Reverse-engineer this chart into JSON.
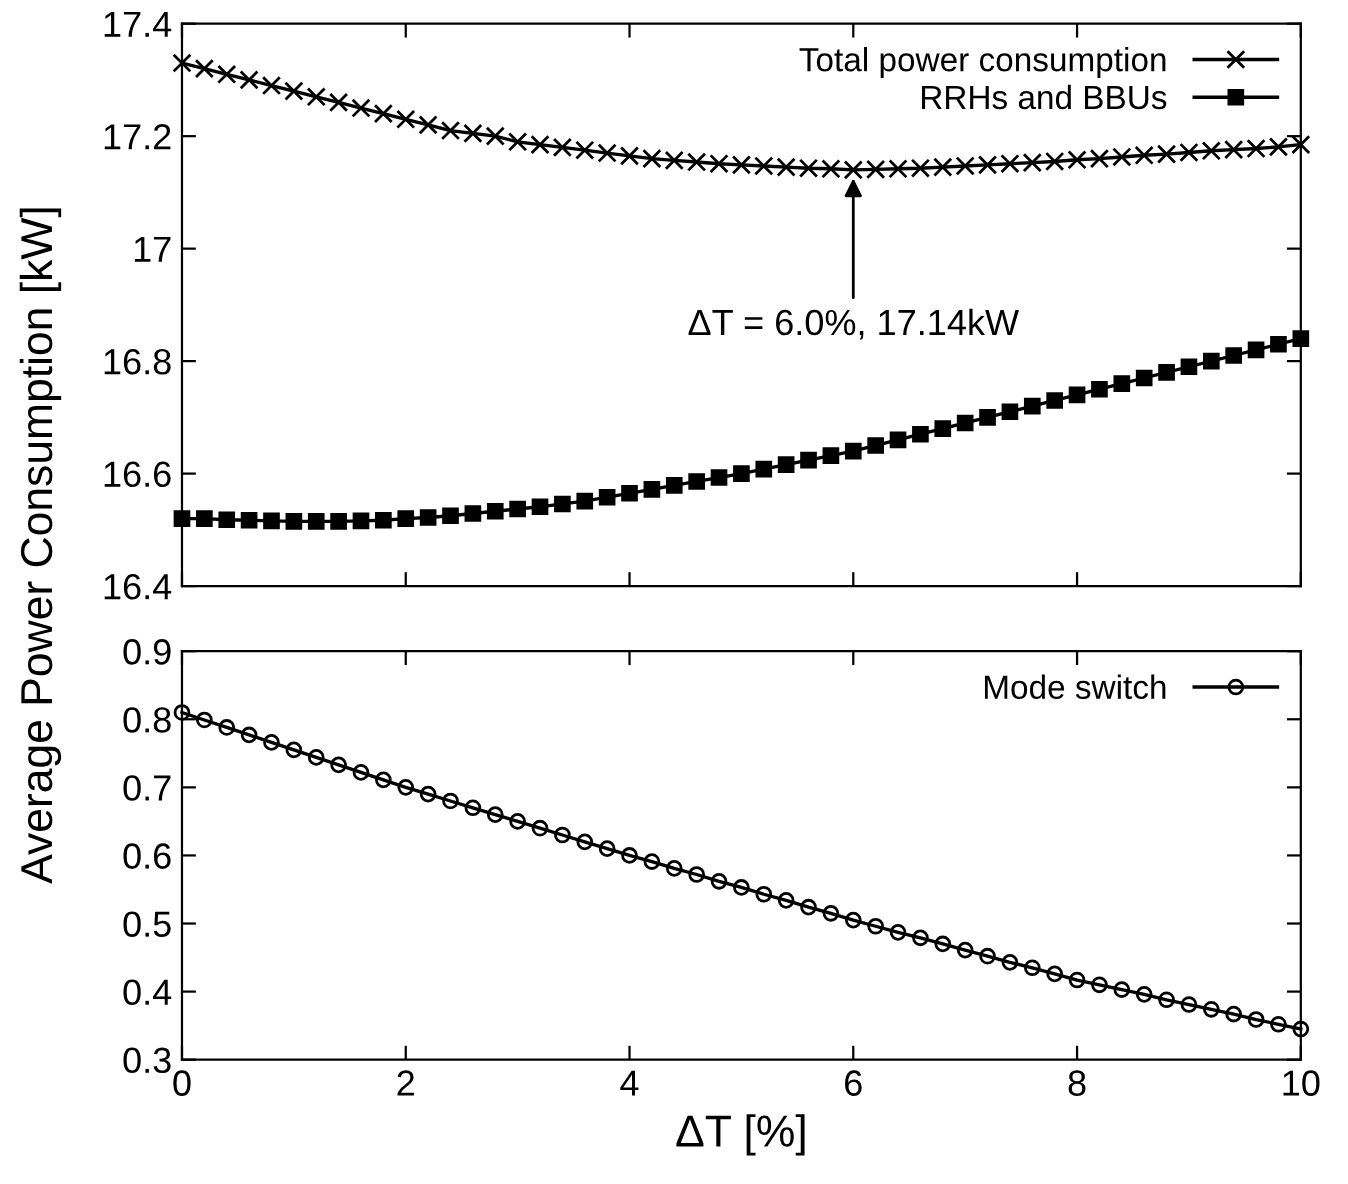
{
  "chart_data": [
    {
      "type": "line",
      "ylabel": "Average Power Consumption [kW]",
      "x": [
        0,
        0.2,
        0.4,
        0.6,
        0.8,
        1,
        1.2,
        1.4,
        1.6,
        1.8,
        2,
        2.2,
        2.4,
        2.6,
        2.8,
        3,
        3.2,
        3.4,
        3.6,
        3.8,
        4,
        4.2,
        4.4,
        4.6,
        4.8,
        5,
        5.2,
        5.4,
        5.6,
        5.8,
        6,
        6.2,
        6.4,
        6.6,
        6.8,
        7,
        7.2,
        7.4,
        7.6,
        7.8,
        8,
        8.2,
        8.4,
        8.6,
        8.8,
        9,
        9.2,
        9.4,
        9.6,
        9.8,
        10
      ],
      "series": [
        {
          "name": "Total power consumption",
          "color": "#000000",
          "marker": "cross",
          "values": [
            17.33,
            17.32,
            17.31,
            17.3,
            17.29,
            17.28,
            17.27,
            17.26,
            17.25,
            17.24,
            17.23,
            17.22,
            17.21,
            17.205,
            17.2,
            17.19,
            17.185,
            17.18,
            17.175,
            17.17,
            17.165,
            17.16,
            17.157,
            17.154,
            17.151,
            17.149,
            17.147,
            17.145,
            17.143,
            17.142,
            17.14,
            17.141,
            17.142,
            17.143,
            17.145,
            17.147,
            17.149,
            17.151,
            17.153,
            17.155,
            17.158,
            17.16,
            17.163,
            17.166,
            17.168,
            17.171,
            17.174,
            17.176,
            17.178,
            17.181,
            17.185
          ]
        },
        {
          "name": "RRHs and BBUs",
          "color": "#000000",
          "marker": "square",
          "values": [
            16.52,
            16.52,
            16.518,
            16.517,
            16.516,
            16.515,
            16.515,
            16.515,
            16.516,
            16.517,
            16.52,
            16.522,
            16.525,
            16.529,
            16.533,
            16.537,
            16.541,
            16.546,
            16.551,
            16.558,
            16.565,
            16.572,
            16.579,
            16.586,
            16.593,
            16.6,
            16.608,
            16.616,
            16.624,
            16.632,
            16.64,
            16.65,
            16.66,
            16.67,
            16.68,
            16.69,
            16.7,
            16.71,
            16.72,
            16.73,
            16.74,
            16.75,
            16.76,
            16.77,
            16.78,
            16.79,
            16.8,
            16.81,
            16.82,
            16.83,
            16.84
          ]
        }
      ],
      "annotations": [
        {
          "text": "ΔT = 6.0%, 17.14kW",
          "x": 6,
          "y": 17.14
        }
      ],
      "xlim": [
        0,
        10
      ],
      "xticks": [
        0,
        2,
        4,
        6,
        8,
        10
      ],
      "ylim": [
        16.4,
        17.4
      ],
      "yticks": [
        16.4,
        16.6,
        16.8,
        17,
        17.2,
        17.4
      ],
      "tick_labels": "y",
      "legend": "top right",
      "grid": false,
      "line_style": "solid"
    },
    {
      "type": "line",
      "xlabel": "ΔT [%]",
      "x": [
        0,
        0.2,
        0.4,
        0.6,
        0.8,
        1,
        1.2,
        1.4,
        1.6,
        1.8,
        2,
        2.2,
        2.4,
        2.6,
        2.8,
        3,
        3.2,
        3.4,
        3.6,
        3.8,
        4,
        4.2,
        4.4,
        4.6,
        4.8,
        5,
        5.2,
        5.4,
        5.6,
        5.8,
        6,
        6.2,
        6.4,
        6.6,
        6.8,
        7,
        7.2,
        7.4,
        7.6,
        7.8,
        8,
        8.2,
        8.4,
        8.6,
        8.8,
        9,
        9.2,
        9.4,
        9.6,
        9.8,
        10
      ],
      "series": [
        {
          "name": "Mode switch",
          "color": "#000000",
          "marker": "circle",
          "values": [
            0.81,
            0.799,
            0.788,
            0.777,
            0.766,
            0.755,
            0.744,
            0.733,
            0.722,
            0.711,
            0.7,
            0.69,
            0.68,
            0.67,
            0.66,
            0.65,
            0.64,
            0.63,
            0.62,
            0.61,
            0.6,
            0.591,
            0.581,
            0.572,
            0.562,
            0.553,
            0.543,
            0.534,
            0.524,
            0.515,
            0.505,
            0.496,
            0.487,
            0.479,
            0.47,
            0.461,
            0.452,
            0.443,
            0.435,
            0.426,
            0.417,
            0.41,
            0.403,
            0.396,
            0.388,
            0.381,
            0.374,
            0.367,
            0.359,
            0.352,
            0.345
          ]
        }
      ],
      "xlim": [
        0,
        10
      ],
      "xticks": [
        0,
        2,
        4,
        6,
        8,
        10
      ],
      "ylim": [
        0.3,
        0.9
      ],
      "yticks": [
        0.3,
        0.4,
        0.5,
        0.6,
        0.7,
        0.8,
        0.9
      ],
      "legend": "top right",
      "grid": false,
      "line_style": "solid"
    }
  ]
}
